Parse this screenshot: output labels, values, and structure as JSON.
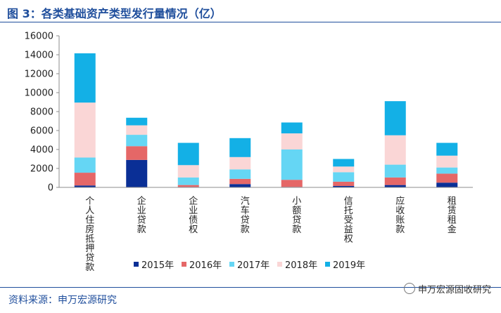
{
  "header": {
    "title": "图 3：各类基础资产类型发行量情况（亿）"
  },
  "footer": {
    "source": "资料来源：申万宏源研究",
    "watermark": "申万宏源固收研究"
  },
  "colors": {
    "2015年": "#0a2f96",
    "2016年": "#e56767",
    "2017年": "#65d6f4",
    "2018年": "#fad6d6",
    "2019年": "#13b0e6"
  },
  "chart_data": {
    "type": "bar",
    "stacked": true,
    "title": "各类基础资产类型发行量情况（亿）",
    "xlabel": "",
    "ylabel": "",
    "ylim": [
      0,
      16000
    ],
    "yticks": [
      0,
      2000,
      4000,
      6000,
      8000,
      10000,
      12000,
      14000,
      16000
    ],
    "ytick_labels": [
      "0",
      "2000",
      "4000",
      "6000",
      "8000",
      "10000",
      "12000",
      "14000",
      "16000"
    ],
    "categories": [
      "个人住房抵押贷款",
      "企业贷款",
      "企业债权",
      "汽车贷款",
      "小额贷款",
      "信托受益权",
      "应收账款",
      "租赁租金"
    ],
    "legend_position": "bottom",
    "series": [
      {
        "name": "2015年",
        "values": [
          200,
          2900,
          50,
          350,
          50,
          150,
          250,
          500
        ]
      },
      {
        "name": "2016年",
        "values": [
          1350,
          1450,
          200,
          550,
          750,
          450,
          800,
          950
        ]
      },
      {
        "name": "2017年",
        "values": [
          1600,
          1200,
          800,
          1000,
          3200,
          1000,
          1350,
          650
        ]
      },
      {
        "name": "2018年",
        "values": [
          5800,
          1000,
          1300,
          1300,
          1700,
          600,
          3100,
          1250
        ]
      },
      {
        "name": "2019年",
        "values": [
          5200,
          800,
          2350,
          2000,
          1150,
          800,
          3600,
          1350
        ]
      }
    ]
  }
}
